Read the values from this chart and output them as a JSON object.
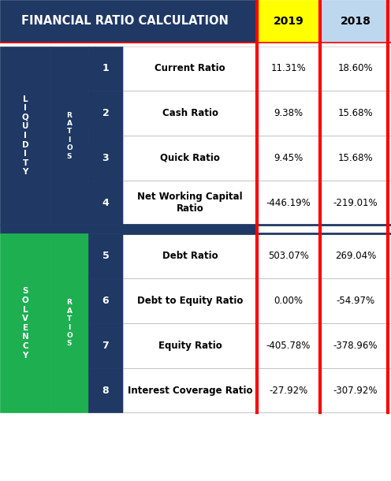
{
  "title": "FINANCIAL RATIO CALCULATION",
  "header_bg": "#1F3864",
  "header_text_color": "#FFFFFF",
  "year_2019_bg": "#FFFF00",
  "year_2018_bg": "#BDD7EE",
  "year_2019_text": "2019",
  "year_2018_text": "2018",
  "liquidity_bg": "#1F3864",
  "solvency_bg": "#1DAF50",
  "ratio_label_bg_dark": "#1F3864",
  "red_border": "#FF0000",
  "row_bg_white": "#FFFFFF",
  "rows": [
    {
      "num": "1",
      "name": "Current Ratio",
      "v2019": "11.31%",
      "v2018": "18.60%",
      "section": "liquidity"
    },
    {
      "num": "2",
      "name": "Cash Ratio",
      "v2019": "9.38%",
      "v2018": "15.68%",
      "section": "liquidity"
    },
    {
      "num": "3",
      "name": "Quick Ratio",
      "v2019": "9.45%",
      "v2018": "15.68%",
      "section": "liquidity"
    },
    {
      "num": "4",
      "name": "Net Working Capital\nRatio",
      "v2019": "-446.19%",
      "v2018": "-219.01%",
      "section": "liquidity"
    },
    {
      "num": "5",
      "name": "Debt Ratio",
      "v2019": "503.07%",
      "v2018": "269.04%",
      "section": "solvency"
    },
    {
      "num": "6",
      "name": "Debt to Equity Ratio",
      "v2019": "0.00%",
      "v2018": "-54.97%",
      "section": "solvency"
    },
    {
      "num": "7",
      "name": "Equity Ratio",
      "v2019": "-405.78%",
      "v2018": "-378.96%",
      "section": "solvency"
    },
    {
      "num": "8",
      "name": "Interest Coverage Ratio",
      "v2019": "-27.92%",
      "v2018": "-307.92%",
      "section": "solvency"
    }
  ],
  "figsize": [
    4.96,
    6.1
  ],
  "dpi": 100
}
